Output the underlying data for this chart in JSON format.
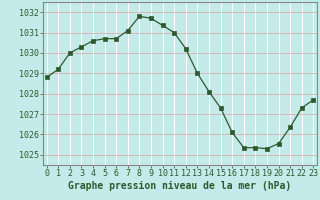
{
  "x": [
    0,
    1,
    2,
    3,
    4,
    5,
    6,
    7,
    8,
    9,
    10,
    11,
    12,
    13,
    14,
    15,
    16,
    17,
    18,
    19,
    20,
    21,
    22,
    23
  ],
  "y": [
    1028.8,
    1029.2,
    1030.0,
    1030.3,
    1030.6,
    1030.7,
    1030.7,
    1031.1,
    1031.8,
    1031.7,
    1031.35,
    1031.0,
    1030.2,
    1029.0,
    1028.1,
    1027.3,
    1026.1,
    1025.35,
    1025.35,
    1025.3,
    1025.55,
    1026.35,
    1027.3,
    1027.7
  ],
  "line_color": "#2d5a2d",
  "marker": "s",
  "marker_size": 2.5,
  "bg_color": "#c5eaea",
  "grid_color": "#d8b8b8",
  "border_color": "#888888",
  "xlabel": "Graphe pression niveau de la mer (hPa)",
  "xlabel_color": "#2d5a2d",
  "xlabel_fontsize": 7,
  "tick_color": "#2d5a2d",
  "tick_fontsize": 6,
  "ylim": [
    1024.5,
    1032.5
  ],
  "yticks": [
    1025,
    1026,
    1027,
    1028,
    1029,
    1030,
    1031,
    1032
  ],
  "xticks": [
    0,
    1,
    2,
    3,
    4,
    5,
    6,
    7,
    8,
    9,
    10,
    11,
    12,
    13,
    14,
    15,
    16,
    17,
    18,
    19,
    20,
    21,
    22,
    23
  ],
  "xlim": [
    -0.3,
    23.3
  ]
}
